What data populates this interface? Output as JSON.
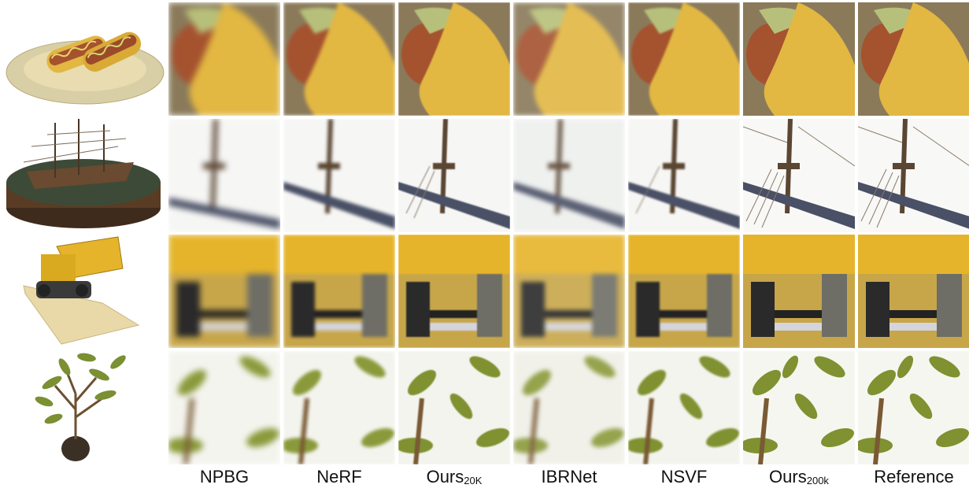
{
  "methods": [
    {
      "name": "NPBG",
      "sub": ""
    },
    {
      "name": "NeRF",
      "sub": ""
    },
    {
      "name": "Ours",
      "sub": "20K"
    },
    {
      "name": "IBRNet",
      "sub": ""
    },
    {
      "name": "NSVF",
      "sub": ""
    },
    {
      "name": "Ours",
      "sub": "200k"
    },
    {
      "name": "Reference",
      "sub": ""
    }
  ],
  "scenes": [
    "hotdog",
    "ship",
    "lego",
    "ficus"
  ],
  "colors": {
    "hotdog_bun": "#e2b742",
    "hotdog_sausage": "#a5522f",
    "ship_wood": "#5a4632",
    "lego_yellow": "#e6b42a",
    "ficus_leaf": "#8a9a3a"
  }
}
